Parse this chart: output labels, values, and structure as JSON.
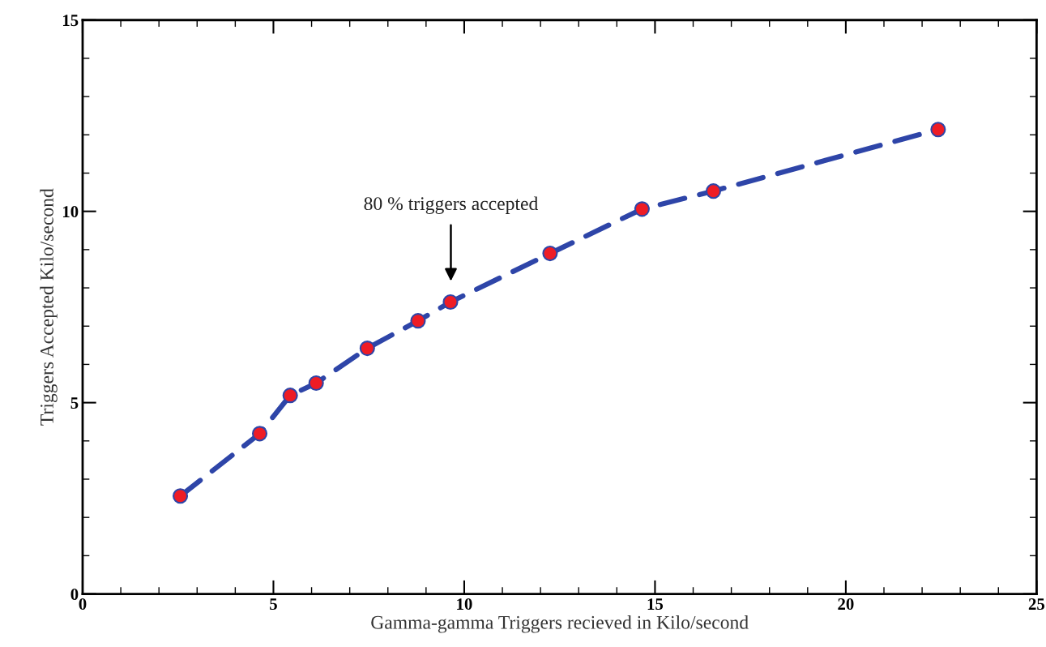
{
  "chart_data": {
    "type": "line",
    "xlabel": "Gamma-gamma Triggers recieved in Kilo/second",
    "ylabel": "Triggers Accepted Kilo/second",
    "x": [
      2.56,
      4.64,
      5.44,
      6.12,
      7.46,
      8.79,
      9.64,
      12.25,
      14.66,
      16.53,
      22.42
    ],
    "series": [
      {
        "color": "#2e45a8",
        "colors": [
          "#ee1c25",
          "#ee1c25",
          "#ee1c25",
          "#ee1c25",
          "#ee1c25",
          "#ee1c25",
          "#ee1c25",
          "#ee1c25",
          "#ee1c25",
          "#ee1c25",
          "#ee1c25"
        ],
        "values": [
          2.56,
          4.19,
          5.19,
          5.51,
          6.42,
          7.14,
          7.63,
          8.9,
          10.06,
          10.53,
          12.14
        ]
      }
    ],
    "xlim": [
      0,
      25
    ],
    "xticks": [
      0,
      5,
      10,
      15,
      20,
      25
    ],
    "ylim": [
      0,
      15
    ],
    "yticks": [
      0,
      5,
      10,
      15
    ],
    "annotations": [
      "80 % triggers accepted"
    ],
    "marker": "circle",
    "line_style": "dashed",
    "grid": false,
    "legend": false
  }
}
